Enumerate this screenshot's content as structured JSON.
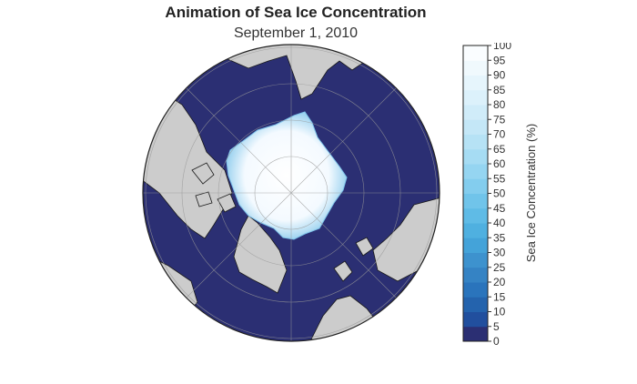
{
  "title": "Animation of Sea Ice Concentration",
  "subtitle": "September 1, 2010",
  "colorbar": {
    "title": "Sea Ice Concentration (%)",
    "ticks": [
      "0",
      "5",
      "10",
      "15",
      "20",
      "25",
      "30",
      "35",
      "40",
      "45",
      "50",
      "55",
      "60",
      "65",
      "70",
      "75",
      "80",
      "85",
      "90",
      "95",
      "100"
    ],
    "colors": [
      "#2b2f73",
      "#214f9e",
      "#2463ad",
      "#2a74bc",
      "#3583c4",
      "#3d92ce",
      "#44a3d9",
      "#4fb0e0",
      "#5fbbe6",
      "#70c4ea",
      "#83cdee",
      "#95d5f1",
      "#a6dcf3",
      "#b6e2f5",
      "#c4e7f7",
      "#d0ecf9",
      "#dcf1fb",
      "#e6f5fc",
      "#f0f9fd",
      "#fafdff"
    ]
  },
  "map": {
    "projection": "north-polar-stereographic",
    "land_color": "#cccccc",
    "ocean_color": "#2b2f73",
    "ice_color": "#ffffff",
    "grid": true
  }
}
